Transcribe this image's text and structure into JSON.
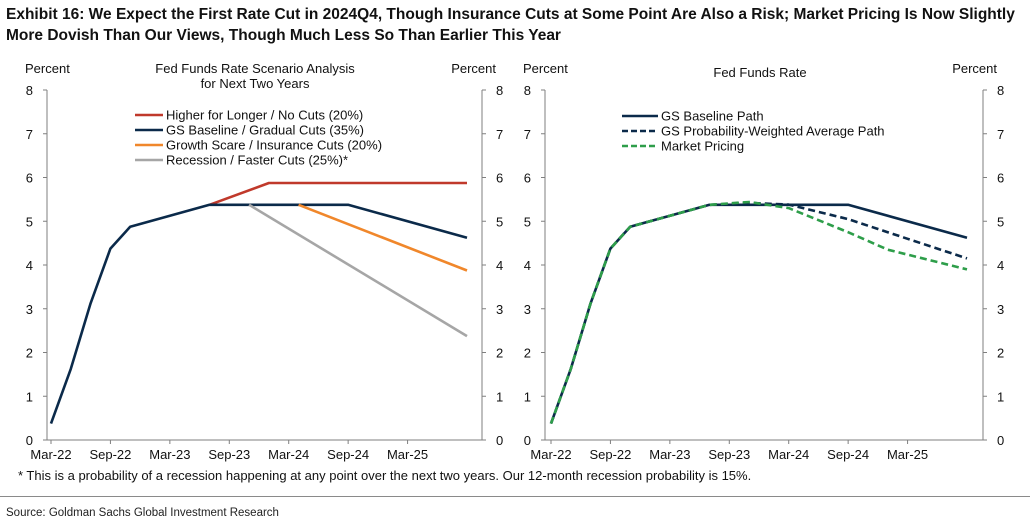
{
  "exhibit_title": "Exhibit 16: We Expect the First Rate Cut in 2024Q4, Though Insurance Cuts at Some Point Are Also a Risk; Market Pricing Is Now Slightly More Dovish Than Our Views, Though Much Less So Than Earlier This Year",
  "footnote": "* This is a probability of a recession happening at any point over the next two years.  Our 12-month recession probability is 15%.",
  "source": "Source: Goldman Sachs Global Investment Research",
  "chart_data": [
    {
      "type": "line",
      "title": "Fed Funds Rate Scenario Analysis for Next Two Years",
      "title_lines": [
        "Fed Funds Rate Scenario Analysis",
        "for Next Two Years"
      ],
      "ylabel_left": "Percent",
      "ylabel_right": "Percent",
      "ylim": [
        0,
        8
      ],
      "yticks": [
        0,
        1,
        2,
        3,
        4,
        5,
        6,
        7,
        8
      ],
      "xlim": [
        "2022-03",
        "2025-09"
      ],
      "xticks": [
        "Mar-22",
        "Sep-22",
        "Mar-23",
        "Sep-23",
        "Mar-24",
        "Sep-24",
        "Mar-25"
      ],
      "grid": false,
      "legend": "top-left",
      "series": [
        {
          "name": "Higher for Longer / No Cuts (20%)",
          "color": "#c0392b",
          "dash": "solid",
          "points": [
            [
              "2023-07",
              5.375
            ],
            [
              "2024-01",
              5.875
            ],
            [
              "2025-09",
              5.875
            ]
          ]
        },
        {
          "name": "GS Baseline / Gradual Cuts (35%)",
          "color": "#0b2a4a",
          "dash": "solid",
          "points": [
            [
              "2022-03",
              0.375
            ],
            [
              "2022-05",
              1.625
            ],
            [
              "2022-07",
              3.125
            ],
            [
              "2022-09",
              4.375
            ],
            [
              "2022-11",
              4.875
            ],
            [
              "2023-03",
              5.125
            ],
            [
              "2023-07",
              5.375
            ],
            [
              "2024-09",
              5.375
            ],
            [
              "2025-09",
              4.625
            ]
          ]
        },
        {
          "name": "Growth Scare / Insurance Cuts (20%)",
          "color": "#f0872b",
          "dash": "solid",
          "points": [
            [
              "2024-04",
              5.375
            ],
            [
              "2025-09",
              3.875
            ]
          ]
        },
        {
          "name": "Recession / Faster Cuts (25%)*",
          "color": "#a6a6a6",
          "dash": "solid",
          "points": [
            [
              "2023-11",
              5.375
            ],
            [
              "2025-09",
              2.375
            ]
          ]
        }
      ]
    },
    {
      "type": "line",
      "title": "Fed Funds Rate",
      "ylabel_left": "Percent",
      "ylabel_right": "Percent",
      "ylim": [
        0,
        8
      ],
      "yticks": [
        0,
        1,
        2,
        3,
        4,
        5,
        6,
        7,
        8
      ],
      "xlim": [
        "2022-03",
        "2025-09"
      ],
      "xticks": [
        "Mar-22",
        "Sep-22",
        "Mar-23",
        "Sep-23",
        "Mar-24",
        "Sep-24",
        "Mar-25"
      ],
      "grid": false,
      "legend": "top-left",
      "series": [
        {
          "name": "GS Baseline Path",
          "color": "#0b2a4a",
          "dash": "solid",
          "points": [
            [
              "2022-03",
              0.375
            ],
            [
              "2022-05",
              1.625
            ],
            [
              "2022-07",
              3.125
            ],
            [
              "2022-09",
              4.375
            ],
            [
              "2022-11",
              4.875
            ],
            [
              "2023-03",
              5.125
            ],
            [
              "2023-07",
              5.375
            ],
            [
              "2024-09",
              5.375
            ],
            [
              "2025-09",
              4.625
            ]
          ]
        },
        {
          "name": "GS Probability-Weighted Average Path",
          "color": "#0b2a4a",
          "dash": "dashed",
          "points": [
            [
              "2022-03",
              0.375
            ],
            [
              "2022-05",
              1.625
            ],
            [
              "2022-07",
              3.125
            ],
            [
              "2022-09",
              4.375
            ],
            [
              "2022-11",
              4.875
            ],
            [
              "2023-03",
              5.125
            ],
            [
              "2023-07",
              5.375
            ],
            [
              "2023-11",
              5.42
            ],
            [
              "2024-03",
              5.38
            ],
            [
              "2024-09",
              5.05
            ],
            [
              "2025-03",
              4.6
            ],
            [
              "2025-09",
              4.15
            ]
          ]
        },
        {
          "name": "Market Pricing",
          "color": "#2e9e4a",
          "dash": "dashed",
          "points": [
            [
              "2022-03",
              0.375
            ],
            [
              "2022-05",
              1.625
            ],
            [
              "2022-07",
              3.125
            ],
            [
              "2022-09",
              4.375
            ],
            [
              "2022-11",
              4.875
            ],
            [
              "2023-03",
              5.125
            ],
            [
              "2023-07",
              5.375
            ],
            [
              "2023-11",
              5.44
            ],
            [
              "2024-03",
              5.3
            ],
            [
              "2024-09",
              4.75
            ],
            [
              "2025-01",
              4.35
            ],
            [
              "2025-09",
              3.9
            ]
          ]
        }
      ]
    }
  ]
}
